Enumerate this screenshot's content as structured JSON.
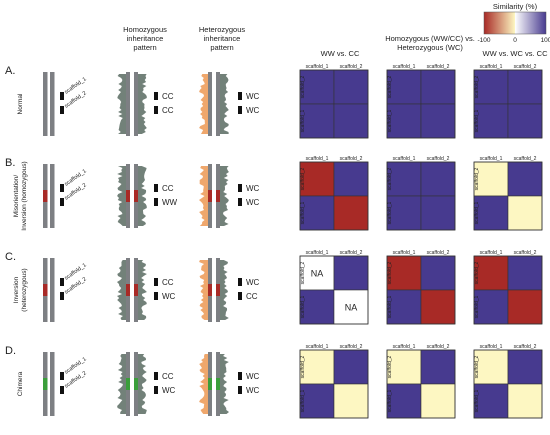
{
  "legend": {
    "title": "Similarity (%)",
    "ticks": [
      "-100",
      "0",
      "100"
    ]
  },
  "column_headers": {
    "homozygous": [
      "Homozygous",
      "inheritance",
      "pattern"
    ],
    "heterozygous": [
      "Heterozygous",
      "inheritance",
      "pattern"
    ],
    "ww_cc": [
      "WW vs. CC"
    ],
    "hom_het": [
      "Homozygous (WW/CC) vs.",
      "Heterozygous (WC)"
    ],
    "ww_wc_cc": [
      "WW vs. WC vs. CC"
    ]
  },
  "scaffold_labels": {
    "s1": "scaffold_1",
    "s2": "scaffold_2"
  },
  "colors": {
    "blue": "#473a8f",
    "red": "#a82a26",
    "yellow": "#fdf7c2",
    "white": "#ffffff",
    "gray": "#7d7f83",
    "orange": "#eea264",
    "green": "#3a9e3a"
  },
  "rows": [
    {
      "letter": "A.",
      "label_lines": [
        "Normal"
      ],
      "hom_strands": [
        "CC",
        "CC"
      ],
      "het_strands": [
        "WC",
        "WC"
      ],
      "center_segment": "none",
      "matrices": [
        {
          "cells": [
            [
              "blue",
              "blue"
            ],
            [
              "blue",
              "blue"
            ]
          ],
          "cell_text": [
            [
              "",
              ""
            ],
            [
              "",
              ""
            ]
          ]
        },
        {
          "cells": [
            [
              "blue",
              "blue"
            ],
            [
              "blue",
              "blue"
            ]
          ],
          "cell_text": [
            [
              "",
              ""
            ],
            [
              "",
              ""
            ]
          ]
        },
        {
          "cells": [
            [
              "blue",
              "blue"
            ],
            [
              "blue",
              "blue"
            ]
          ],
          "cell_text": [
            [
              "",
              ""
            ],
            [
              "",
              ""
            ]
          ]
        }
      ]
    },
    {
      "letter": "B.",
      "label_lines": [
        "Misorientation/",
        "Inversion (homozygous)"
      ],
      "hom_strands": [
        "CC",
        "WW"
      ],
      "het_strands": [
        "WC",
        "WC"
      ],
      "center_segment": "red",
      "matrices": [
        {
          "cells": [
            [
              "red",
              "blue"
            ],
            [
              "blue",
              "red"
            ]
          ],
          "cell_text": [
            [
              "",
              ""
            ],
            [
              "",
              ""
            ]
          ]
        },
        {
          "cells": [
            [
              "blue",
              "blue"
            ],
            [
              "blue",
              "blue"
            ]
          ],
          "cell_text": [
            [
              "",
              ""
            ],
            [
              "",
              ""
            ]
          ]
        },
        {
          "cells": [
            [
              "yellow",
              "blue"
            ],
            [
              "blue",
              "yellow"
            ]
          ],
          "cell_text": [
            [
              "",
              ""
            ],
            [
              "",
              ""
            ]
          ]
        }
      ]
    },
    {
      "letter": "C.",
      "label_lines": [
        "Inversion",
        "(heterozygous)"
      ],
      "hom_strands": [
        "CC",
        "WC"
      ],
      "het_strands": [
        "WC",
        "CC"
      ],
      "center_segment": "red",
      "matrices": [
        {
          "cells": [
            [
              "white",
              "blue"
            ],
            [
              "blue",
              "white"
            ]
          ],
          "cell_text": [
            [
              "NA",
              ""
            ],
            [
              "",
              "NA"
            ]
          ]
        },
        {
          "cells": [
            [
              "red",
              "blue"
            ],
            [
              "blue",
              "red"
            ]
          ],
          "cell_text": [
            [
              "",
              ""
            ],
            [
              "",
              ""
            ]
          ]
        },
        {
          "cells": [
            [
              "red",
              "blue"
            ],
            [
              "blue",
              "red"
            ]
          ],
          "cell_text": [
            [
              "",
              ""
            ],
            [
              "",
              ""
            ]
          ]
        }
      ]
    },
    {
      "letter": "D.",
      "label_lines": [
        "Chimera"
      ],
      "hom_strands": [
        "CC",
        "WC"
      ],
      "het_strands": [
        "WC",
        "WC"
      ],
      "center_segment": "green",
      "matrices": [
        {
          "cells": [
            [
              "yellow",
              "blue"
            ],
            [
              "blue",
              "yellow"
            ]
          ],
          "cell_text": [
            [
              "",
              ""
            ],
            [
              "",
              ""
            ]
          ]
        },
        {
          "cells": [
            [
              "yellow",
              "blue"
            ],
            [
              "blue",
              "yellow"
            ]
          ],
          "cell_text": [
            [
              "",
              ""
            ],
            [
              "",
              ""
            ]
          ]
        },
        {
          "cells": [
            [
              "yellow",
              "blue"
            ],
            [
              "blue",
              "yellow"
            ]
          ],
          "cell_text": [
            [
              "",
              ""
            ],
            [
              "",
              ""
            ]
          ]
        }
      ]
    }
  ]
}
